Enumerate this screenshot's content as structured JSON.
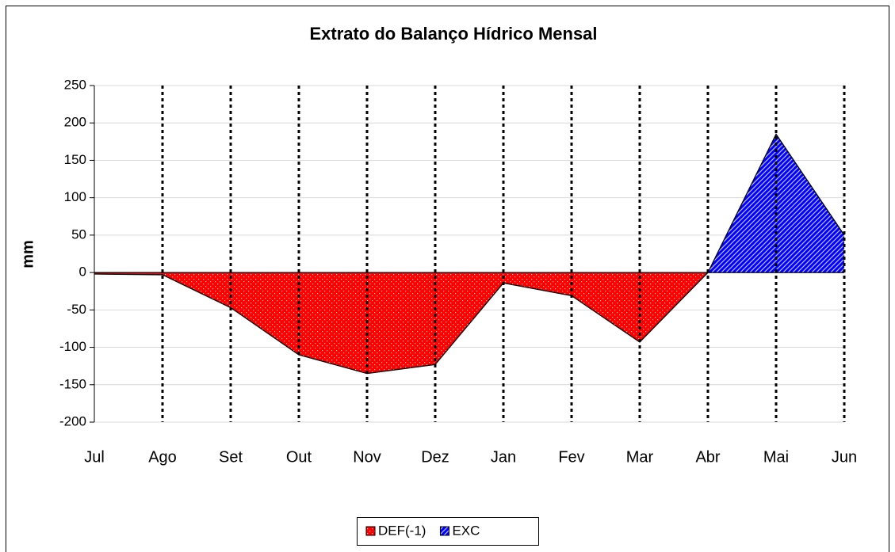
{
  "chart_data": {
    "type": "area",
    "title": "Extrato do Balanço Hídrico Mensal",
    "y_label": "mm",
    "categories": [
      "Jul",
      "Ago",
      "Set",
      "Out",
      "Nov",
      "Dez",
      "Jan",
      "Fev",
      "Mar",
      "Abr",
      "Mai",
      "Jun"
    ],
    "series": [
      {
        "name": "DEF(-1)",
        "color": "#ff0000",
        "pattern": "dots",
        "values": [
          -2,
          -3,
          -47,
          -110,
          -135,
          -123,
          -14,
          -31,
          -93,
          0,
          0,
          0
        ]
      },
      {
        "name": "EXC",
        "color": "#0000ff",
        "pattern": "stripes",
        "values": [
          0,
          0,
          0,
          0,
          0,
          0,
          0,
          0,
          0,
          0,
          185,
          50
        ]
      }
    ],
    "ylim": [
      -200,
      250
    ],
    "yticks": [
      -200,
      -150,
      -100,
      -50,
      0,
      50,
      100,
      150,
      200,
      250
    ],
    "grid": true,
    "xgrid": true,
    "legend": "bottom"
  }
}
